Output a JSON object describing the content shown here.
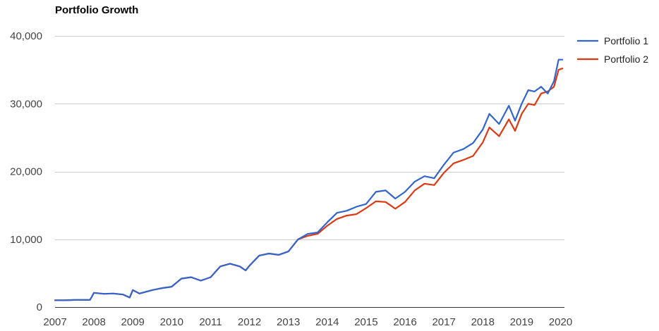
{
  "chart_data": {
    "type": "line",
    "title": "Portfolio Growth",
    "xlabel": "",
    "ylabel": "",
    "xlim": [
      2007,
      2020.1
    ],
    "ylim": [
      0,
      40000
    ],
    "grid": true,
    "legend_position": "right",
    "x_ticks": [
      2007,
      2008,
      2009,
      2010,
      2011,
      2012,
      2013,
      2014,
      2015,
      2016,
      2017,
      2018,
      2019,
      2020
    ],
    "x_tick_labels": [
      "2007",
      "2008",
      "2009",
      "2010",
      "2011",
      "2012",
      "2013",
      "2014",
      "2015",
      "2016",
      "2017",
      "2018",
      "2019",
      "2020"
    ],
    "y_ticks": [
      0,
      10000,
      20000,
      30000,
      40000
    ],
    "y_tick_labels": [
      "0",
      "10,000",
      "20,000",
      "30,000",
      "40,000"
    ],
    "x": [
      2007.0,
      2007.25,
      2007.5,
      2007.75,
      2007.9,
      2008.0,
      2008.25,
      2008.5,
      2008.75,
      2008.92,
      2009.0,
      2009.17,
      2009.5,
      2009.75,
      2010.0,
      2010.25,
      2010.5,
      2010.75,
      2011.0,
      2011.25,
      2011.5,
      2011.75,
      2011.9,
      2012.0,
      2012.25,
      2012.5,
      2012.75,
      2013.0,
      2013.25,
      2013.5,
      2013.75,
      2014.0,
      2014.25,
      2014.5,
      2014.75,
      2015.0,
      2015.25,
      2015.5,
      2015.75,
      2016.0,
      2016.25,
      2016.5,
      2016.75,
      2017.0,
      2017.25,
      2017.5,
      2017.75,
      2018.0,
      2018.17,
      2018.42,
      2018.67,
      2018.83,
      2019.0,
      2019.17,
      2019.33,
      2019.5,
      2019.67,
      2019.83,
      2019.95,
      2020.05
    ],
    "series": [
      {
        "name": "Portfolio 1",
        "color": "#3366cc",
        "values": [
          1000,
          1000,
          1050,
          1050,
          1050,
          2100,
          1950,
          2000,
          1850,
          1400,
          2500,
          2000,
          2500,
          2800,
          3000,
          4200,
          4400,
          3900,
          4400,
          6000,
          6400,
          6000,
          5400,
          6100,
          7600,
          7900,
          7700,
          8200,
          10000,
          10800,
          11000,
          12500,
          13900,
          14200,
          14800,
          15200,
          17000,
          17200,
          16000,
          17000,
          18500,
          19300,
          19000,
          21000,
          22800,
          23300,
          24200,
          26200,
          28500,
          27000,
          29700,
          27500,
          30000,
          32000,
          31800,
          32500,
          31500,
          33300,
          36500,
          36500
        ]
      },
      {
        "name": "Portfolio 2",
        "color": "#dc3912",
        "values": [
          1000,
          1000,
          1050,
          1050,
          1050,
          2100,
          1950,
          2000,
          1850,
          1400,
          2500,
          2000,
          2500,
          2800,
          3000,
          4200,
          4400,
          3900,
          4400,
          6000,
          6400,
          6000,
          5400,
          6100,
          7600,
          7900,
          7700,
          8200,
          10000,
          10500,
          10800,
          12000,
          13000,
          13500,
          13700,
          14600,
          15600,
          15500,
          14500,
          15500,
          17200,
          18200,
          18000,
          19800,
          21200,
          21700,
          22300,
          24300,
          26500,
          25200,
          27700,
          26000,
          28500,
          30000,
          29800,
          31500,
          31800,
          32500,
          35000,
          35200
        ]
      }
    ]
  }
}
